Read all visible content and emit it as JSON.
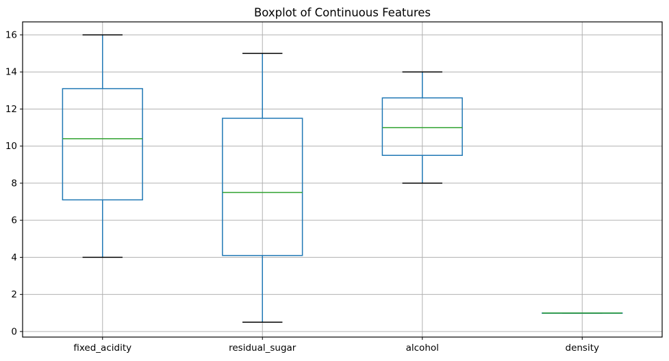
{
  "chart_data": {
    "type": "boxplot",
    "title": "Boxplot of Continuous Features",
    "categories": [
      "fixed_acidity",
      "residual_sugar",
      "alcohol",
      "density"
    ],
    "boxes": [
      {
        "label": "fixed_acidity",
        "whislo": 4.0,
        "q1": 7.1,
        "med": 10.4,
        "q3": 13.1,
        "whishi": 16.0
      },
      {
        "label": "residual_sugar",
        "whislo": 0.5,
        "q1": 4.1,
        "med": 7.5,
        "q3": 11.5,
        "whishi": 15.0
      },
      {
        "label": "alcohol",
        "whislo": 8.0,
        "q1": 9.5,
        "med": 11.0,
        "q3": 12.6,
        "whishi": 14.0
      },
      {
        "label": "density",
        "whislo": 0.99,
        "q1": 0.992,
        "med": 0.996,
        "q3": 1.0,
        "whishi": 1.0
      }
    ],
    "x_positions": [
      1,
      2,
      3,
      4
    ],
    "xlim": [
      0.5,
      4.5
    ],
    "ylim": [
      -0.3,
      16.7
    ],
    "y_ticks": [
      0,
      2,
      4,
      6,
      8,
      10,
      12,
      14,
      16
    ],
    "grid": true,
    "legend": "none",
    "box_width": 0.5,
    "cap_width": 0.25,
    "colors": {
      "box": "#1f77b4",
      "whisker": "#1f77b4",
      "median": "#2ca02c",
      "cap": "#000000",
      "grid": "#b0b0b0",
      "spine": "#000000",
      "text": "#000000",
      "background": "#ffffff"
    }
  }
}
